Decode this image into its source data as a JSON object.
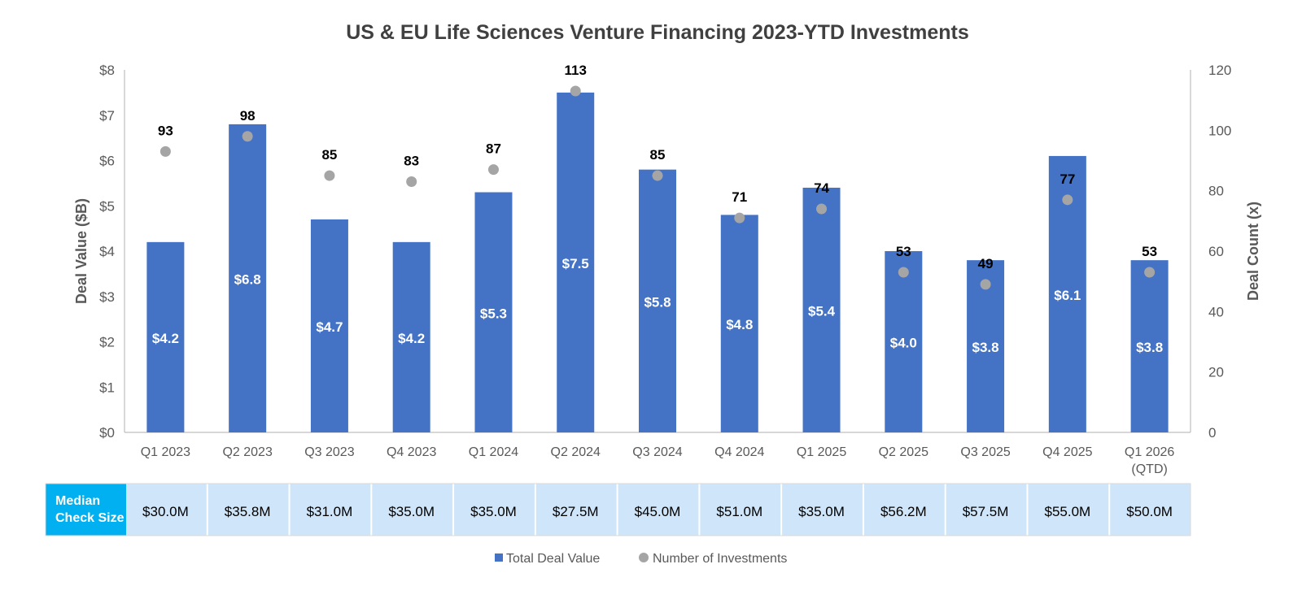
{
  "chart_data": {
    "type": "bar",
    "title": "US & EU Life Sciences Venture Financing 2023-YTD Investments",
    "categories": [
      [
        "Q1 2023"
      ],
      [
        "Q2 2023"
      ],
      [
        "Q3 2023"
      ],
      [
        "Q4 2023"
      ],
      [
        "Q1 2024"
      ],
      [
        "Q2 2024"
      ],
      [
        "Q3 2024"
      ],
      [
        "Q4 2024"
      ],
      [
        "Q1 2025"
      ],
      [
        "Q2 2025"
      ],
      [
        "Q3 2025"
      ],
      [
        "Q4 2025"
      ],
      [
        "Q1 2026",
        "(QTD)"
      ]
    ],
    "y_left": {
      "label": "Deal Value ($B)",
      "range": [
        0,
        8
      ],
      "ticks": [
        "$0",
        "$1",
        "$2",
        "$3",
        "$4",
        "$5",
        "$6",
        "$7",
        "$8"
      ]
    },
    "y_right": {
      "label": "Deal Count (x)",
      "range": [
        0,
        120
      ],
      "ticks": [
        "0",
        "20",
        "40",
        "60",
        "80",
        "100",
        "120"
      ]
    },
    "series": [
      {
        "name": "Total Deal Value",
        "kind": "bar",
        "axis": "left",
        "color": "#4472C4",
        "values": [
          4.2,
          6.8,
          4.7,
          4.2,
          5.3,
          7.5,
          5.8,
          4.8,
          5.4,
          4.0,
          3.8,
          6.1,
          3.8
        ],
        "labels": [
          "$4.2",
          "$6.8",
          "$4.7",
          "$4.2",
          "$5.3",
          "$7.5",
          "$5.8",
          "$4.8",
          "$5.4",
          "$4.0",
          "$3.8",
          "$6.1",
          "$3.8"
        ]
      },
      {
        "name": "Number of Investments",
        "kind": "scatter",
        "axis": "right",
        "color": "#A5A5A5",
        "values": [
          93,
          98,
          85,
          83,
          87,
          113,
          85,
          71,
          74,
          53,
          49,
          77,
          53
        ],
        "labels": [
          "93",
          "98",
          "85",
          "83",
          "87",
          "113",
          "85",
          "71",
          "74",
          "53",
          "49",
          "77",
          "53"
        ]
      }
    ],
    "table": {
      "header": [
        "Median",
        "Check Size"
      ],
      "values": [
        "$30.0M",
        "$35.8M",
        "$31.0M",
        "$35.0M",
        "$35.0M",
        "$27.5M",
        "$45.0M",
        "$51.0M",
        "$35.0M",
        "$56.2M",
        "$57.5M",
        "$55.0M",
        "$50.0M"
      ],
      "header_color": "#00B0F0",
      "cell_color": "#CFE5F9"
    },
    "legend": {
      "placement": "bottom"
    },
    "grid": false
  }
}
